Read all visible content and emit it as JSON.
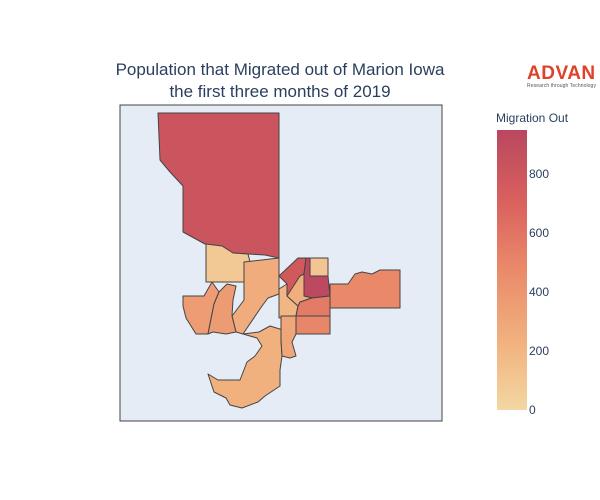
{
  "title": {
    "line1": "Population that Migrated out of Marion Iowa",
    "line2": "the first three months of 2019"
  },
  "logo": {
    "word": "ADVAN",
    "tagline": "Research through Technology",
    "color": "#e0412a"
  },
  "colors": {
    "map_background": "#e5ecf6",
    "region_border": "#444444",
    "colorscale": [
      "#f3d7a3",
      "#f1b07e",
      "#ea8a6a",
      "#d9605e",
      "#b9475f"
    ]
  },
  "colorbar": {
    "title": "Migration Out",
    "range": [
      0,
      950
    ],
    "ticks": [
      "0",
      "200",
      "400",
      "600",
      "800"
    ],
    "tick_values": [
      0,
      200,
      400,
      600,
      800
    ]
  },
  "regions": [
    {
      "name": "north",
      "value": 820
    },
    {
      "name": "west-central-small",
      "value": 90
    },
    {
      "name": "center-west",
      "value": 260
    },
    {
      "name": "far-west",
      "value": 360
    },
    {
      "name": "west-inner",
      "value": 370
    },
    {
      "name": "south",
      "value": 230
    },
    {
      "name": "center-small",
      "value": 200
    },
    {
      "name": "center-north-a",
      "value": 780
    },
    {
      "name": "center-north-b",
      "value": 110
    },
    {
      "name": "center-east-dark",
      "value": 930
    },
    {
      "name": "center-mid",
      "value": 250
    },
    {
      "name": "center-lower",
      "value": 560
    },
    {
      "name": "east-strip",
      "value": 480
    },
    {
      "name": "center-south",
      "value": 500
    },
    {
      "name": "south-small",
      "value": 300
    }
  ]
}
